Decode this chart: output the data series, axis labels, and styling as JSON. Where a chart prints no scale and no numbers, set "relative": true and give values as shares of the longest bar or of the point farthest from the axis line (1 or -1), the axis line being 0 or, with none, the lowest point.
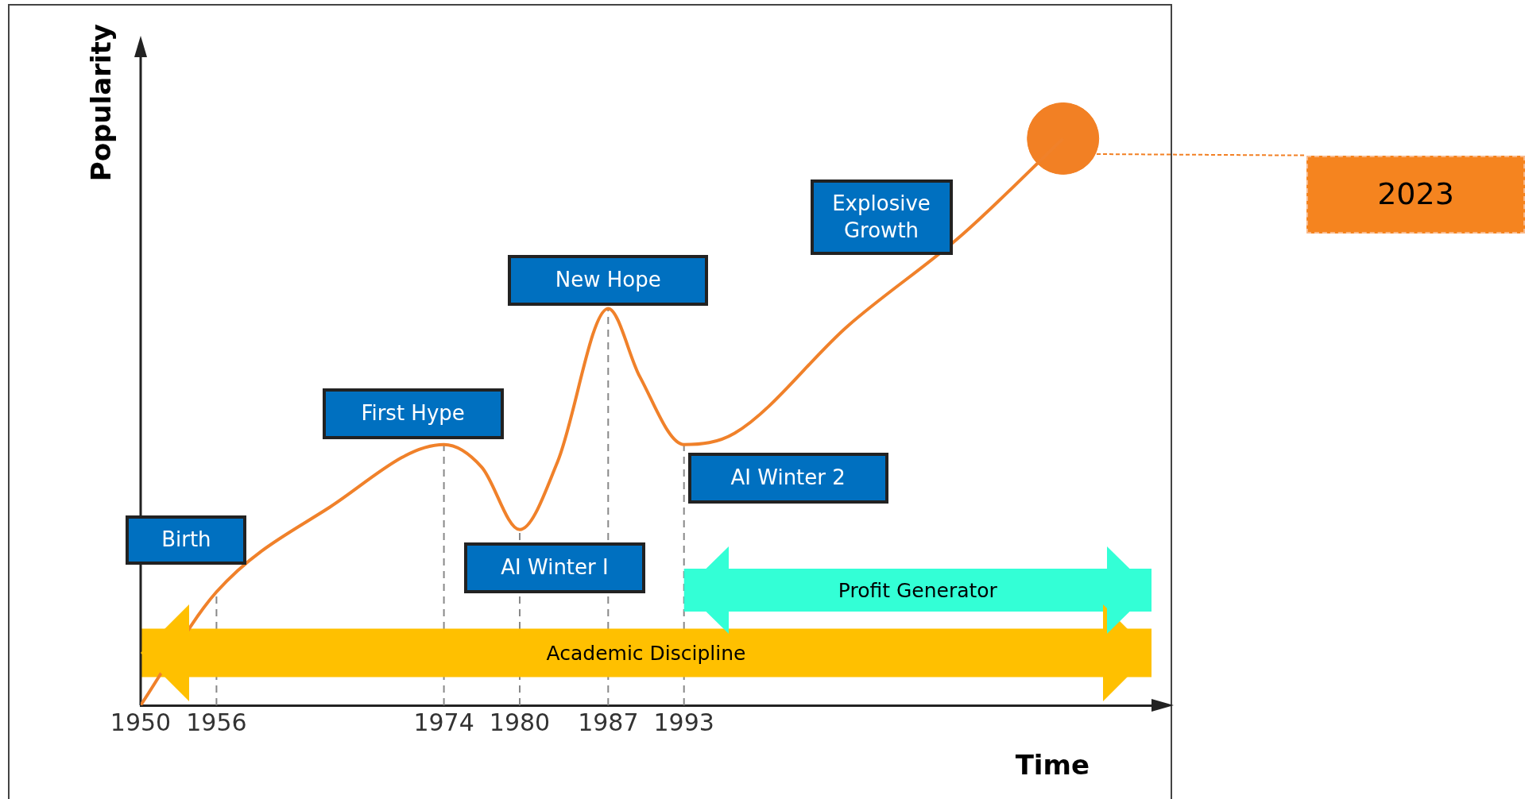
{
  "chart_data": {
    "type": "line",
    "relative": true,
    "xlabel": "Time",
    "ylabel": "Popularity",
    "tick_labels": "x",
    "xlim": [
      1950,
      2030
    ],
    "xticks": [
      1950,
      1956,
      1974,
      1980,
      1987,
      1993
    ],
    "series": [
      {
        "type": "line",
        "color": "#f0812a",
        "line_style": "solid",
        "x": [
          1950,
          1956,
          1965,
          1974,
          1977,
          1980,
          1983,
          1987,
          1989.5,
          1993,
          1997,
          2006,
          2015,
          2023
        ],
        "values": [
          0,
          0.2,
          0.35,
          0.46,
          0.42,
          0.31,
          0.43,
          0.7,
          0.58,
          0.46,
          0.48,
          0.67,
          0.83,
          1
        ]
      },
      {
        "type": "scatter",
        "color": "#f28024",
        "marker": "circle",
        "x": [
          2023
        ],
        "values": [
          1
        ]
      }
    ],
    "annotations": [
      {
        "text": "Birth",
        "x": 1956,
        "y": 0.2
      },
      {
        "text": "First Hype",
        "x": 1974,
        "y": 0.46
      },
      {
        "text": "AI Winter I",
        "x": 1980,
        "y": 0.31
      },
      {
        "text": "New Hope",
        "x": 1987,
        "y": 0.7
      },
      {
        "text": "AI Winter 2",
        "x": 1993,
        "y": 0.46
      },
      {
        "text": "Explosive Growth",
        "x": 2010,
        "y": 0.74
      },
      "2023"
    ],
    "ref_lines": [
      {
        "axis": "x",
        "value": 1956,
        "color": "#888888",
        "line_style": "dashed"
      },
      {
        "axis": "x",
        "value": 1974,
        "color": "#888888",
        "line_style": "dashed"
      },
      {
        "axis": "x",
        "value": 1980,
        "color": "#888888",
        "line_style": "dashed"
      },
      {
        "axis": "x",
        "value": 1987,
        "color": "#888888",
        "line_style": "dashed"
      },
      {
        "axis": "x",
        "value": 1993,
        "color": "#888888",
        "line_style": "dashed"
      }
    ],
    "bands": [
      {
        "axis": "x",
        "from": 1950,
        "to": 2030,
        "label": "Academic Discipline",
        "color": "#ffc000"
      },
      {
        "axis": "x",
        "from": 1993,
        "to": 2030,
        "label": "Profit Generator",
        "color": "#33ffd6"
      }
    ]
  }
}
